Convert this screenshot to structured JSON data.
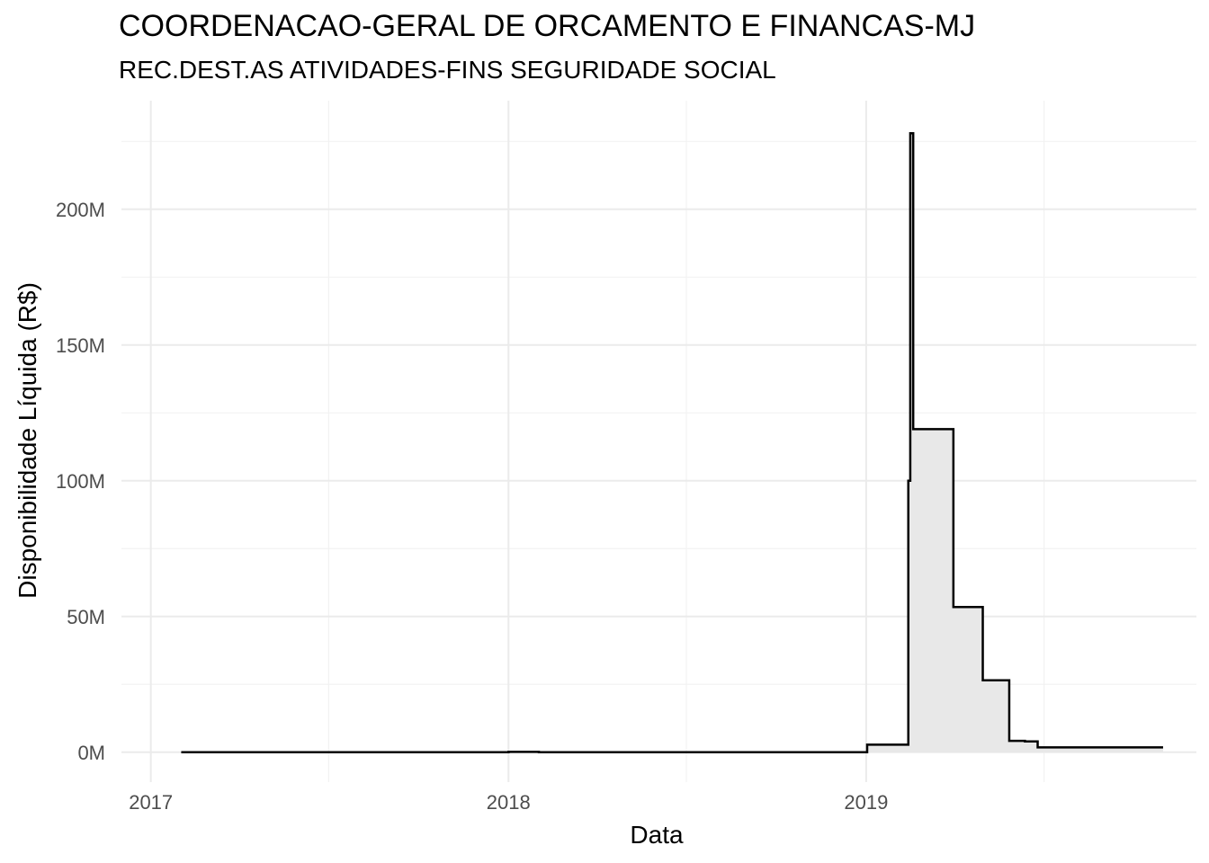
{
  "chart_data": {
    "type": "area",
    "title": "COORDENACAO-GERAL DE ORCAMENTO E FINANCAS-MJ",
    "subtitle": "REC.DEST.AS ATIVIDADES-FINS SEGURIDADE SOCIAL",
    "xlabel": "Data",
    "ylabel": "Disponibilidade Líquida (R$)",
    "x_ticks": [
      {
        "date": "2017-01-01",
        "label": "2017"
      },
      {
        "date": "2018-01-01",
        "label": "2018"
      },
      {
        "date": "2019-01-01",
        "label": "2019"
      }
    ],
    "y_ticks": [
      {
        "value": 0,
        "label": "0M"
      },
      {
        "value": 50000000,
        "label": "50M"
      },
      {
        "value": 100000000,
        "label": "100M"
      },
      {
        "value": 150000000,
        "label": "150M"
      },
      {
        "value": 200000000,
        "label": "200M"
      }
    ],
    "xlim": [
      "2016-12-02",
      "2019-12-04"
    ],
    "ylim": [
      -11000000,
      240000000
    ],
    "grid": true,
    "line_color": "#000000",
    "fill_color": "#e8e8e8",
    "series": [
      {
        "step": true,
        "points": [
          {
            "x": "2017-02-01",
            "y": 0
          },
          {
            "x": "2018-01-01",
            "y": 150000
          },
          {
            "x": "2018-02-01",
            "y": 0
          },
          {
            "x": "2018-12-31",
            "y": 0
          },
          {
            "x": "2019-01-02",
            "y": 2800000
          },
          {
            "x": "2019-02-12",
            "y": 2800000
          },
          {
            "x": "2019-02-13",
            "y": 100000000
          },
          {
            "x": "2019-02-15",
            "y": 228000000
          },
          {
            "x": "2019-02-18",
            "y": 119000000
          },
          {
            "x": "2019-03-31",
            "y": 53500000
          },
          {
            "x": "2019-04-30",
            "y": 26500000
          },
          {
            "x": "2019-05-27",
            "y": 4200000
          },
          {
            "x": "2019-06-12",
            "y": 4000000
          },
          {
            "x": "2019-06-25",
            "y": 1800000
          },
          {
            "x": "2019-10-31",
            "y": 1800000
          }
        ]
      }
    ]
  }
}
